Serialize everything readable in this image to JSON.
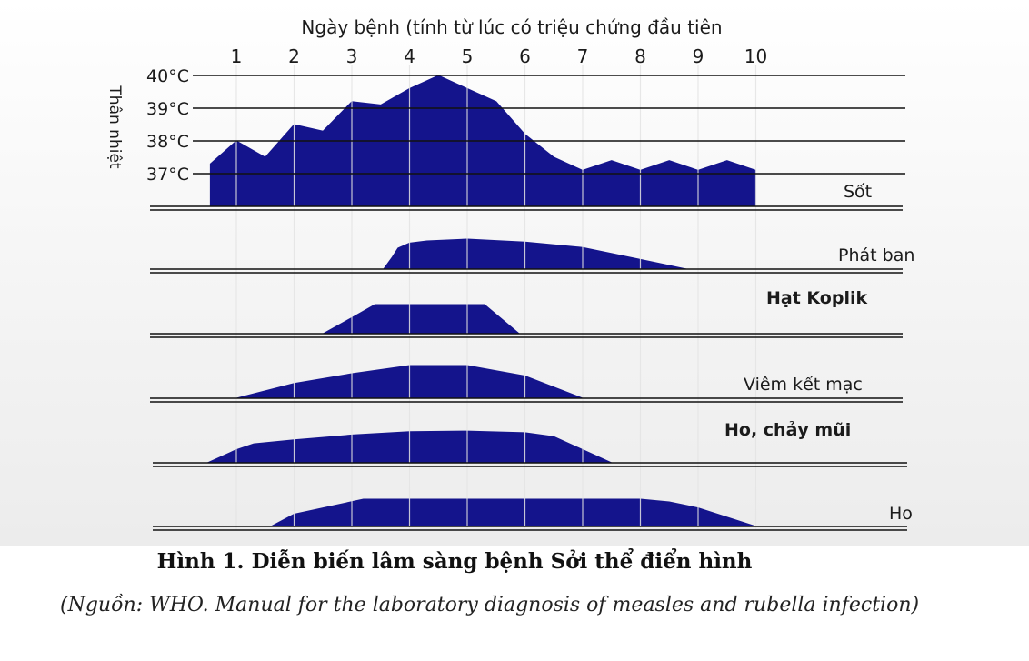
{
  "chart_data": {
    "type": "area",
    "xlabel": "Ngày bệnh (tính từ lúc có triệu chứng đầu tiên",
    "ylabel": "Thân nhiệt",
    "x_ticks": [
      "1",
      "2",
      "3",
      "4",
      "5",
      "6",
      "7",
      "8",
      "9",
      "10"
    ],
    "y_ticks": [
      "40°C",
      "39°C",
      "38°C",
      "37°C"
    ],
    "ylim": [
      36,
      40
    ],
    "grid": true,
    "color": "#14148c",
    "panels": [
      {
        "name": "Sốt",
        "kind": "temperature",
        "x": [
          0.55,
          1.0,
          1.5,
          2.0,
          2.5,
          3.0,
          3.5,
          4.0,
          4.5,
          5.0,
          5.5,
          6.0,
          6.5,
          7.0,
          7.5,
          8.0,
          8.5,
          9.0,
          9.5,
          10.0
        ],
        "y": [
          37.3,
          38.0,
          37.5,
          38.5,
          38.3,
          39.2,
          39.1,
          39.6,
          40.0,
          39.6,
          39.2,
          38.2,
          37.5,
          37.1,
          37.4,
          37.1,
          37.4,
          37.1,
          37.4,
          37.1
        ]
      },
      {
        "name": "Phát ban",
        "kind": "intensity",
        "x": [
          3.55,
          3.7,
          3.8,
          4.0,
          4.3,
          5.0,
          6.0,
          7.0,
          8.0,
          8.8
        ],
        "y": [
          0.0,
          0.4,
          0.7,
          0.87,
          0.94,
          1.0,
          0.9,
          0.72,
          0.32,
          0.0
        ]
      },
      {
        "name": "Hạt Koplik",
        "kind": "intensity",
        "x": [
          2.5,
          3.0,
          3.4,
          5.3,
          5.9
        ],
        "y": [
          0.0,
          0.55,
          1.0,
          1.0,
          0.0
        ]
      },
      {
        "name": "Viêm kết mạc",
        "kind": "intensity",
        "x": [
          1.0,
          2.0,
          3.0,
          4.0,
          5.0,
          6.0,
          7.0
        ],
        "y": [
          0.0,
          0.45,
          0.75,
          1.0,
          1.0,
          0.68,
          0.0
        ]
      },
      {
        "name": "Ho, chảy mũi",
        "kind": "intensity",
        "x": [
          0.5,
          1.0,
          1.3,
          2.0,
          3.0,
          4.0,
          5.0,
          6.0,
          6.5,
          7.5
        ],
        "y": [
          0.0,
          0.4,
          0.58,
          0.7,
          0.85,
          0.95,
          0.97,
          0.92,
          0.8,
          0.0
        ]
      },
      {
        "name": "Ho",
        "kind": "intensity",
        "x": [
          1.6,
          2.0,
          2.5,
          3.2,
          4.0,
          5.0,
          6.0,
          7.0,
          8.0,
          8.5,
          9.0,
          10.0
        ],
        "y": [
          0.0,
          0.45,
          0.68,
          1.0,
          1.0,
          1.0,
          1.0,
          1.0,
          1.0,
          0.9,
          0.68,
          0.0
        ]
      }
    ]
  },
  "caption": "Hình 1. Diễn biến lâm sàng bệnh Sởi thể điển hình",
  "source": "(Nguồn: WHO. Manual for the laboratory diagnosis of measles and rubella infection)"
}
